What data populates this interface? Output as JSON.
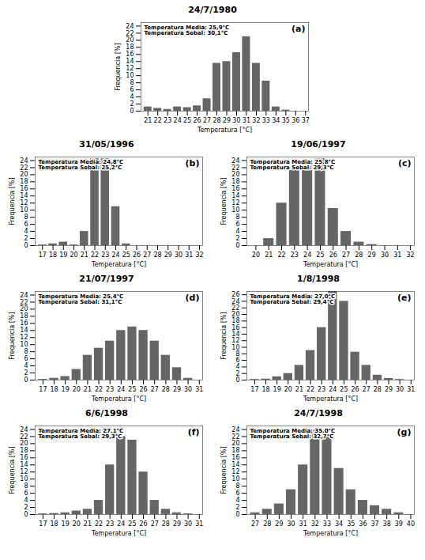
{
  "chart_data": [
    {
      "type": "bar",
      "title": "24/7/1980",
      "xlabel": "Temperatura [°C]",
      "ylabel": "Frequencia [%]",
      "annotations": [
        "(a)",
        "Temperatura Media: 25,9°C",
        "Temperatura Sebal: 30,1°C"
      ],
      "x": [
        21,
        22,
        23,
        24,
        25,
        26,
        27,
        28,
        29,
        30,
        31,
        32,
        33,
        34,
        35
      ],
      "values": [
        1.2,
        0.8,
        0.5,
        1.2,
        1.0,
        1.5,
        3.5,
        13.5,
        14.0,
        16.5,
        21.0,
        13.5,
        8.5,
        1.2,
        0.3
      ],
      "color": "#666666",
      "xlim": [
        20.3,
        37.3
      ],
      "xticks": [
        21,
        22,
        23,
        24,
        25,
        26,
        27,
        28,
        29,
        30,
        31,
        32,
        33,
        34,
        35,
        36,
        37
      ],
      "ylim": [
        0,
        25
      ],
      "yticks": [
        0,
        2,
        4,
        6,
        8,
        10,
        12,
        14,
        16,
        18,
        20,
        22,
        24
      ],
      "grid": false
    },
    {
      "type": "bar",
      "title": "31/05/1996",
      "xlabel": "Temperatura [°C]",
      "ylabel": "Frequencia [%]",
      "annotations": [
        "(b)",
        "Temperatura Media: 24,8°C",
        "Temperatura Sebal: 25,2°C"
      ],
      "x": [
        17,
        18,
        19,
        20,
        21,
        22,
        23,
        24,
        25,
        26,
        27,
        28,
        29,
        30,
        31
      ],
      "values": [
        0.2,
        0.5,
        1.0,
        0.2,
        4.0,
        24.5,
        24.5,
        11.0,
        0.5,
        0.0,
        0.0,
        0.0,
        0.0,
        0.0,
        0.0
      ],
      "color": "#666666",
      "xlim": [
        16.3,
        32.3
      ],
      "xticks": [
        17,
        18,
        19,
        20,
        21,
        22,
        23,
        24,
        25,
        26,
        27,
        28,
        29,
        30,
        31,
        32
      ],
      "ylim": [
        0,
        25
      ],
      "yticks": [
        0,
        2,
        4,
        6,
        8,
        10,
        12,
        14,
        16,
        18,
        20,
        22,
        24
      ],
      "grid": false
    },
    {
      "type": "bar",
      "title": "19/06/1997",
      "xlabel": "Temperatura [°C]",
      "ylabel": "Frequencia [%]",
      "annotations": [
        "(c)",
        "Temperatura Media: 25,8°C",
        "Temperatura Sebal: 29,3°C"
      ],
      "x": [
        20,
        21,
        22,
        23,
        24,
        25,
        26,
        27,
        28,
        29,
        30,
        31
      ],
      "values": [
        0.0,
        2.0,
        12.0,
        21.5,
        23.0,
        24.5,
        10.5,
        4.0,
        1.0,
        0.3,
        0.0,
        0.0
      ],
      "color": "#666666",
      "xlim": [
        19.3,
        32.3
      ],
      "xticks": [
        20,
        21,
        22,
        23,
        24,
        25,
        26,
        27,
        28,
        29,
        30,
        31,
        32
      ],
      "ylim": [
        0,
        25
      ],
      "yticks": [
        0,
        2,
        4,
        6,
        8,
        10,
        12,
        14,
        16,
        18,
        20,
        22,
        24
      ],
      "grid": false
    },
    {
      "type": "bar",
      "title": "21/07/1997",
      "xlabel": "Temperatura [°C]",
      "ylabel": "Frequencia [%]",
      "annotations": [
        "(d)",
        "Temperatura Media: 25,4°C",
        "Temperatura Sebal: 31,1°C"
      ],
      "x": [
        17,
        18,
        19,
        20,
        21,
        22,
        23,
        24,
        25,
        26,
        27,
        28,
        29,
        30
      ],
      "values": [
        0.2,
        0.5,
        1.0,
        3.0,
        7.0,
        9.0,
        11.0,
        14.0,
        15.0,
        14.0,
        11.0,
        7.0,
        3.5,
        0.5
      ],
      "color": "#666666",
      "xlim": [
        16.3,
        31.3
      ],
      "xticks": [
        17,
        18,
        19,
        20,
        21,
        22,
        23,
        24,
        25,
        26,
        27,
        28,
        29,
        30,
        31
      ],
      "ylim": [
        0,
        25
      ],
      "yticks": [
        0,
        2,
        4,
        6,
        8,
        10,
        12,
        14,
        16,
        18,
        20,
        22,
        24
      ],
      "grid": false
    },
    {
      "type": "bar",
      "title": "1/8/1998",
      "xlabel": "Temperatura [°C]",
      "ylabel": "Frequencia [%]",
      "annotations": [
        "(e)",
        "Temperatura Media: 27,0°C",
        "Temperatura Sebal: 29,4°C"
      ],
      "x": [
        17,
        18,
        19,
        20,
        21,
        22,
        23,
        24,
        25,
        26,
        27,
        28,
        29,
        30
      ],
      "values": [
        0.2,
        0.3,
        1.0,
        2.0,
        4.5,
        9.0,
        16.0,
        27.0,
        24.0,
        8.5,
        4.5,
        1.5,
        0.5,
        0.2
      ],
      "color": "#666666",
      "xlim": [
        16.3,
        31.3
      ],
      "xticks": [
        17,
        18,
        19,
        20,
        21,
        22,
        23,
        24,
        25,
        26,
        27,
        28,
        29,
        30,
        31
      ],
      "ylim": [
        0,
        27
      ],
      "yticks": [
        0,
        2,
        4,
        6,
        8,
        10,
        12,
        14,
        16,
        18,
        20,
        22,
        24,
        26
      ],
      "grid": false
    },
    {
      "type": "bar",
      "title": "6/6/1998",
      "xlabel": "Temperatura [°C]",
      "ylabel": "Frequencia [%]",
      "annotations": [
        "(f)",
        "Temperatura Media: 27,1°C",
        "Temperatura Sebal: 29,3°C"
      ],
      "x": [
        17,
        18,
        19,
        20,
        21,
        22,
        23,
        24,
        25,
        26,
        27,
        28,
        29,
        30
      ],
      "values": [
        0.2,
        0.3,
        0.5,
        1.0,
        1.5,
        4.0,
        14.0,
        22.0,
        21.0,
        12.0,
        4.0,
        1.5,
        0.5,
        0.2
      ],
      "color": "#666666",
      "xlim": [
        16.3,
        31.3
      ],
      "xticks": [
        17,
        18,
        19,
        20,
        21,
        22,
        23,
        24,
        25,
        26,
        27,
        28,
        29,
        30,
        31
      ],
      "ylim": [
        0,
        25
      ],
      "yticks": [
        0,
        2,
        4,
        6,
        8,
        10,
        12,
        14,
        16,
        18,
        20,
        22,
        24
      ],
      "grid": false
    },
    {
      "type": "bar",
      "title": "24/7/1998",
      "xlabel": "Temperatura [°C]",
      "ylabel": "Frequencia [%]",
      "annotations": [
        "(g)",
        "Temperatura Media: 35,0°C",
        "Temperatura Sebal: 32,7°C"
      ],
      "x": [
        27,
        28,
        29,
        30,
        31,
        32,
        33,
        34,
        35,
        36,
        37,
        38,
        39
      ],
      "values": [
        0.5,
        1.5,
        3.0,
        7.0,
        14.0,
        24.0,
        22.0,
        13.0,
        7.0,
        4.0,
        2.5,
        1.5,
        0.5
      ],
      "color": "#666666",
      "xlim": [
        26.3,
        40.3
      ],
      "xticks": [
        27,
        28,
        29,
        30,
        31,
        32,
        33,
        34,
        35,
        36,
        37,
        38,
        39,
        40
      ],
      "ylim": [
        0,
        25
      ],
      "yticks": [
        0,
        2,
        4,
        6,
        8,
        10,
        12,
        14,
        16,
        18,
        20,
        22,
        24
      ],
      "grid": false
    }
  ]
}
